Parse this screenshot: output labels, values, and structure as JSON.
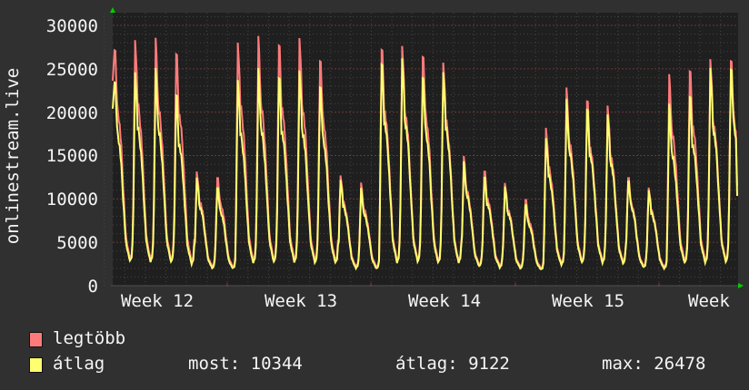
{
  "chart_data": {
    "type": "line",
    "ylabel": "onlinestream.live",
    "xlabel": "",
    "ylim": [
      0,
      30000
    ],
    "yticks": [
      "0",
      "5000",
      "10000",
      "15000",
      "20000",
      "25000",
      "30000"
    ],
    "xticks": [
      "Week 12",
      "Week 13",
      "Week 14",
      "Week 15",
      "Week"
    ],
    "grid": true,
    "legend_placement": "bottom-left",
    "series": [
      {
        "name": "legtöbb",
        "color": "#ff7b7b",
        "daily_peaks": [
          27800,
          28300,
          27900,
          27000,
          13000,
          12700,
          28000,
          28100,
          28000,
          28200,
          26500,
          12700,
          11600,
          27500,
          27300,
          27000,
          25700,
          14600,
          13300,
          11700,
          10100,
          18200,
          22300,
          21500,
          20500,
          12700,
          11300,
          23800,
          25000,
          25800,
          26500
        ],
        "daily_troughs": [
          2600,
          2500,
          2500,
          2300,
          2000,
          2000,
          2400,
          2500,
          2500,
          2400,
          2400,
          2000,
          2000,
          2400,
          2500,
          2400,
          2400,
          2200,
          2100,
          2000,
          1900,
          2300,
          2500,
          2500,
          2400,
          2100,
          2000,
          2500,
          2500,
          2500,
          2500
        ],
        "last": 11500
      },
      {
        "name": "átlag",
        "color": "#ffff70",
        "daily_peaks": [
          24000,
          24600,
          24500,
          22200,
          12300,
          11500,
          23700,
          24500,
          24200,
          24500,
          23400,
          12200,
          11000,
          25800,
          25900,
          24500,
          24600,
          14000,
          12600,
          11300,
          9500,
          17000,
          21000,
          20500,
          19500,
          12300,
          11000,
          20500,
          22000,
          24800,
          25500
        ],
        "daily_troughs": [
          2400,
          2300,
          2300,
          2100,
          1800,
          1800,
          2200,
          2300,
          2300,
          2200,
          2200,
          1800,
          1800,
          2200,
          2300,
          2200,
          2200,
          2000,
          1900,
          1800,
          1700,
          2100,
          2300,
          2300,
          2200,
          1900,
          1800,
          2300,
          2300,
          2300,
          2300
        ],
        "last": 10344
      }
    ]
  },
  "legend": {
    "max_label": "legtöbb",
    "avg_label": "átlag",
    "now": "most: 10344",
    "average": "átlag: 9122",
    "maximum": "max: 26478"
  },
  "colors": {
    "background": "#303030",
    "plot": "#1f1f1f",
    "max": "#ff7b7b",
    "avg": "#ffff70",
    "arrow": "#00cc00"
  }
}
